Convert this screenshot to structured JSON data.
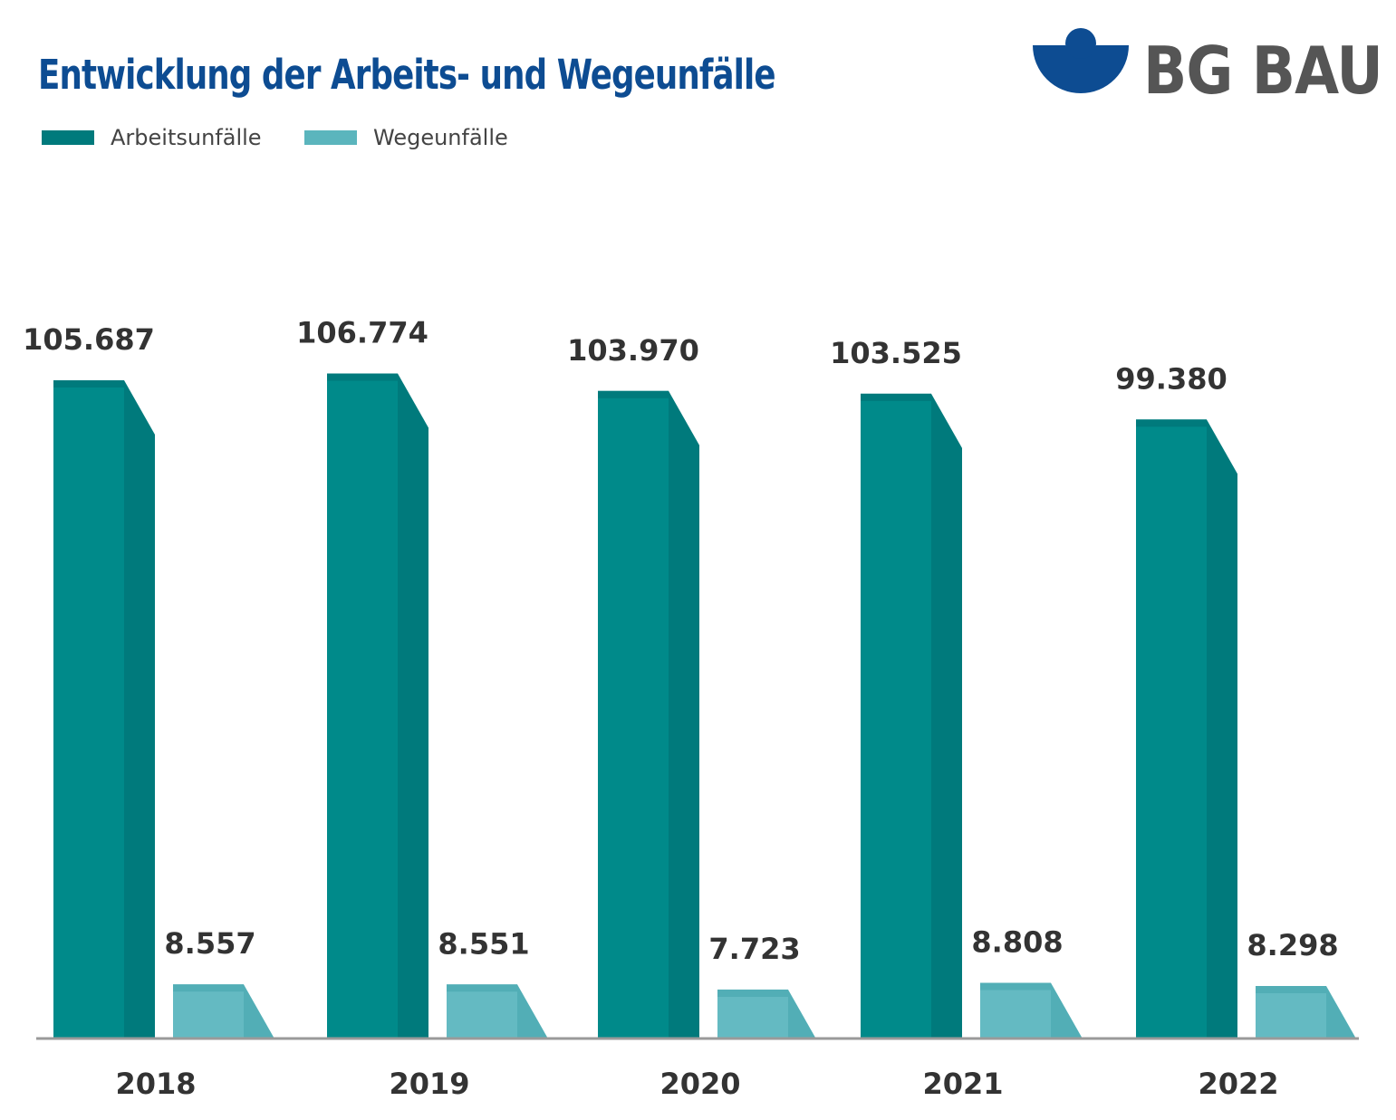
{
  "chart_data": {
    "type": "bar",
    "title": "Entwicklung der Arbeits- und Wegeunfälle",
    "categories": [
      "2018",
      "2019",
      "2020",
      "2021",
      "2022"
    ],
    "series": [
      {
        "name": "Arbeitsunfälle",
        "values": [
          105687,
          106774,
          103970,
          103525,
          99380
        ],
        "labels": [
          "105.687",
          "106.774",
          "103.970",
          "103.525",
          "99.380"
        ],
        "color": "#008a8a",
        "side_color": "#007a7c"
      },
      {
        "name": "Wegeunfälle",
        "values": [
          8557,
          8551,
          7723,
          8808,
          8298
        ],
        "labels": [
          "8.557",
          "8.551",
          "7.723",
          "8.808",
          "8.298"
        ],
        "color": "#64bac2",
        "side_color": "#52aeb6"
      }
    ],
    "xlabel": "",
    "ylabel": "",
    "ylim": [
      0,
      106774
    ],
    "grid": false,
    "legend": "top-left"
  },
  "logo": {
    "text": "BG BAU",
    "color": "#0d4c92"
  }
}
